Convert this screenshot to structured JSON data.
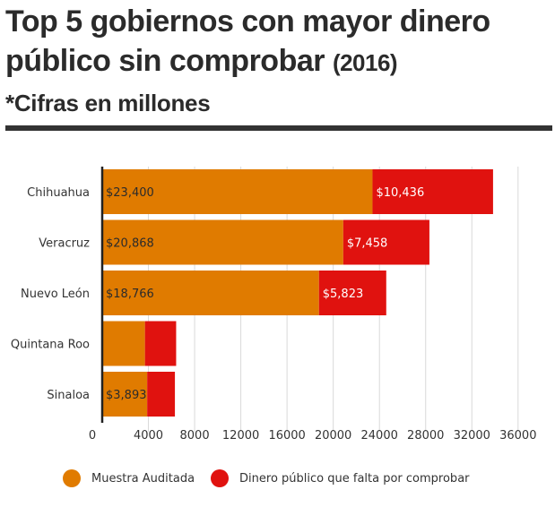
{
  "header": {
    "title_main": "Top 5 gobiernos con mayor dinero público sin comprobar",
    "title_year": "(2016)",
    "subtitle": "*Cifras en millones"
  },
  "colors": {
    "audited": "#E07B00",
    "missing": "#E0120F",
    "grid": "#d9d9d9",
    "axis": "#222222"
  },
  "chart_data": {
    "type": "bar",
    "orientation": "horizontal",
    "stacked": true,
    "title": "Top 5 gobiernos con mayor dinero público sin comprobar (2016)",
    "subtitle": "*Cifras en millones",
    "categories": [
      "Chihuahua",
      "Veracruz",
      "Nuevo León",
      "Quintana Roo",
      "Sinaloa"
    ],
    "series": [
      {
        "name": "Muestra Auditada",
        "values": [
          23400,
          20868,
          18766,
          3700,
          3893
        ],
        "labels": [
          "$23,400",
          "$20,868",
          "$18,766",
          "",
          "$3,893"
        ]
      },
      {
        "name": "Dinero público que falta por comprobar",
        "values": [
          10436,
          7458,
          5823,
          2700,
          2400
        ],
        "labels": [
          "$10,436",
          "$7,458",
          "$5,823",
          "",
          ""
        ]
      }
    ],
    "xlim": [
      0,
      38500
    ],
    "xticks": [
      0,
      4000,
      8000,
      12000,
      16000,
      20000,
      24000,
      28000,
      32000,
      36000
    ],
    "grid": true,
    "legend_position": "bottom"
  }
}
